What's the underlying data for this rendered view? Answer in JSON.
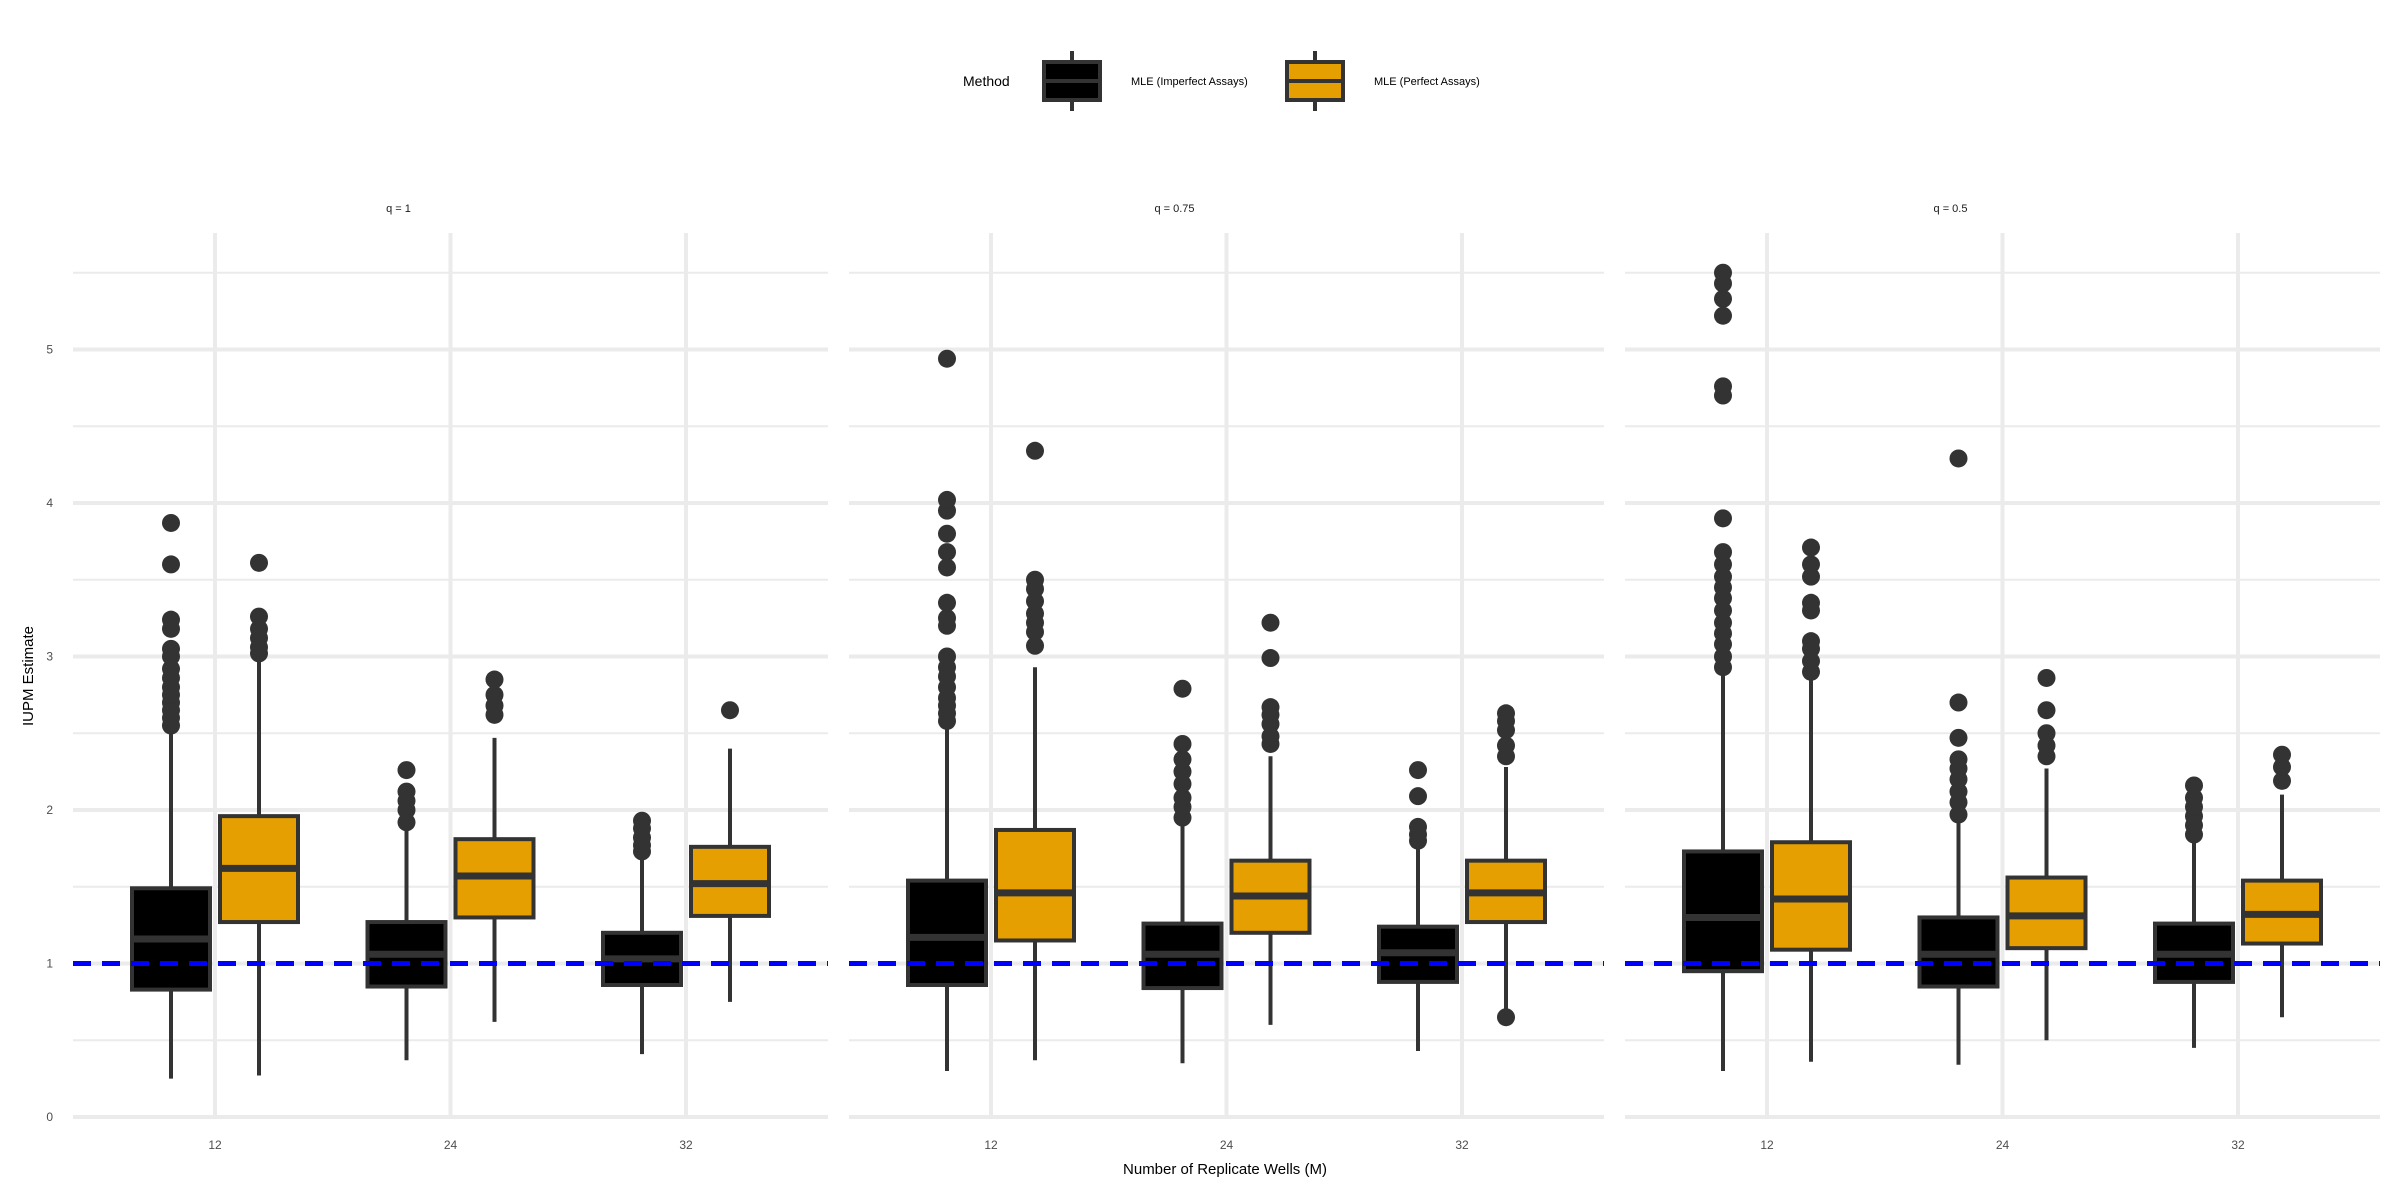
{
  "chart_data": {
    "type": "boxplot",
    "xlabel": "Number of Replicate Wells (M)",
    "ylabel": "IUPM Estimate",
    "ylim": [
      0,
      5.5
    ],
    "y_ticks": [
      0,
      1,
      2,
      3,
      4,
      5
    ],
    "categories": [
      "12",
      "24",
      "32"
    ],
    "reference_line": {
      "y": 1,
      "style": "dashed",
      "color": "#0000ff"
    },
    "grid": true,
    "legend": {
      "title": "Method",
      "position": "top",
      "entries": [
        {
          "label": "MLE (Imperfect Assays)",
          "color": "#000000"
        },
        {
          "label": "MLE (Perfect Assays)",
          "color": "#e69f00"
        }
      ]
    },
    "panels": [
      {
        "title": "q = 1",
        "series": [
          {
            "name": "MLE (Imperfect Assays)",
            "color": "#000000",
            "boxes": [
              {
                "category": "12",
                "whisker_low": 0.25,
                "q1": 0.83,
                "median": 1.16,
                "q3": 1.49,
                "whisker_high": 2.52,
                "outliers": [
                  2.55,
                  2.6,
                  2.65,
                  2.7,
                  2.75,
                  2.8,
                  2.86,
                  2.92,
                  3.0,
                  3.05,
                  3.18,
                  3.24,
                  3.6,
                  3.87
                ]
              },
              {
                "category": "24",
                "whisker_low": 0.37,
                "q1": 0.85,
                "median": 1.06,
                "q3": 1.27,
                "whisker_high": 1.9,
                "outliers": [
                  1.92,
                  2.0,
                  2.06,
                  2.12,
                  2.26
                ]
              },
              {
                "category": "32",
                "whisker_low": 0.41,
                "q1": 0.86,
                "median": 1.03,
                "q3": 1.2,
                "whisker_high": 1.7,
                "outliers": [
                  1.73,
                  1.77,
                  1.82,
                  1.88,
                  1.93
                ]
              }
            ]
          },
          {
            "name": "MLE (Perfect Assays)",
            "color": "#e69f00",
            "boxes": [
              {
                "category": "12",
                "whisker_low": 0.27,
                "q1": 1.27,
                "median": 1.62,
                "q3": 1.96,
                "whisker_high": 2.98,
                "outliers": [
                  3.02,
                  3.06,
                  3.12,
                  3.18,
                  3.26,
                  3.61
                ]
              },
              {
                "category": "24",
                "whisker_low": 0.62,
                "q1": 1.3,
                "median": 1.57,
                "q3": 1.81,
                "whisker_high": 2.47,
                "outliers": [
                  2.62,
                  2.68,
                  2.75,
                  2.85
                ]
              },
              {
                "category": "32",
                "whisker_low": 0.75,
                "q1": 1.31,
                "median": 1.52,
                "q3": 1.76,
                "whisker_high": 2.4,
                "outliers": [
                  2.65
                ]
              }
            ]
          }
        ]
      },
      {
        "title": "q = 0.75",
        "series": [
          {
            "name": "MLE (Imperfect Assays)",
            "color": "#000000",
            "boxes": [
              {
                "category": "12",
                "whisker_low": 0.3,
                "q1": 0.86,
                "median": 1.17,
                "q3": 1.54,
                "whisker_high": 2.56,
                "outliers": [
                  2.58,
                  2.63,
                  2.68,
                  2.73,
                  2.8,
                  2.87,
                  2.93,
                  3.0,
                  3.2,
                  3.25,
                  3.35,
                  3.58,
                  3.68,
                  3.8,
                  3.95,
                  4.02,
                  4.94
                ]
              },
              {
                "category": "24",
                "whisker_low": 0.35,
                "q1": 0.84,
                "median": 1.06,
                "q3": 1.26,
                "whisker_high": 1.92,
                "outliers": [
                  1.95,
                  2.02,
                  2.08,
                  2.17,
                  2.25,
                  2.33,
                  2.43,
                  2.79
                ]
              },
              {
                "category": "32",
                "whisker_low": 0.43,
                "q1": 0.88,
                "median": 1.07,
                "q3": 1.24,
                "whisker_high": 1.78,
                "outliers": [
                  1.8,
                  1.84,
                  1.89,
                  2.09,
                  2.26
                ]
              }
            ]
          },
          {
            "name": "MLE (Perfect Assays)",
            "color": "#e69f00",
            "boxes": [
              {
                "category": "12",
                "whisker_low": 0.37,
                "q1": 1.15,
                "median": 1.46,
                "q3": 1.87,
                "whisker_high": 2.93,
                "outliers": [
                  3.07,
                  3.16,
                  3.22,
                  3.28,
                  3.36,
                  3.44,
                  3.5,
                  4.34
                ]
              },
              {
                "category": "24",
                "whisker_low": 0.6,
                "q1": 1.2,
                "median": 1.44,
                "q3": 1.67,
                "whisker_high": 2.35,
                "outliers": [
                  2.43,
                  2.48,
                  2.56,
                  2.62,
                  2.67,
                  2.99,
                  3.22
                ]
              },
              {
                "category": "32",
                "whisker_low": 0.65,
                "q1": 1.27,
                "median": 1.46,
                "q3": 1.67,
                "whisker_high": 2.28,
                "outliers": [
                  2.35,
                  2.42,
                  2.52,
                  2.58,
                  2.63,
                  0.65
                ]
              }
            ]
          }
        ]
      },
      {
        "title": "q = 0.5",
        "series": [
          {
            "name": "MLE (Imperfect Assays)",
            "color": "#000000",
            "boxes": [
              {
                "category": "12",
                "whisker_low": 0.3,
                "q1": 0.95,
                "median": 1.3,
                "q3": 1.73,
                "whisker_high": 2.9,
                "outliers": [
                  2.93,
                  3.0,
                  3.08,
                  3.15,
                  3.22,
                  3.3,
                  3.38,
                  3.45,
                  3.52,
                  3.6,
                  3.68,
                  3.9,
                  4.7,
                  4.76,
                  5.22,
                  5.33,
                  5.43,
                  5.5
                ]
              },
              {
                "category": "24",
                "whisker_low": 0.34,
                "q1": 0.85,
                "median": 1.06,
                "q3": 1.3,
                "whisker_high": 1.95,
                "outliers": [
                  1.97,
                  2.05,
                  2.12,
                  2.2,
                  2.27,
                  2.33,
                  2.47,
                  2.7,
                  4.29
                ]
              },
              {
                "category": "32",
                "whisker_low": 0.45,
                "q1": 0.88,
                "median": 1.06,
                "q3": 1.26,
                "whisker_high": 1.8,
                "outliers": [
                  1.84,
                  1.9,
                  1.96,
                  2.02,
                  2.08,
                  2.16
                ]
              }
            ]
          },
          {
            "name": "MLE (Perfect Assays)",
            "color": "#e69f00",
            "boxes": [
              {
                "category": "12",
                "whisker_low": 0.36,
                "q1": 1.09,
                "median": 1.42,
                "q3": 1.79,
                "whisker_high": 2.85,
                "outliers": [
                  2.9,
                  2.97,
                  3.05,
                  3.1,
                  3.3,
                  3.35,
                  3.52,
                  3.6,
                  3.71
                ]
              },
              {
                "category": "24",
                "whisker_low": 0.5,
                "q1": 1.1,
                "median": 1.31,
                "q3": 1.56,
                "whisker_high": 2.27,
                "outliers": [
                  2.35,
                  2.42,
                  2.5,
                  2.65,
                  2.86
                ]
              },
              {
                "category": "32",
                "whisker_low": 0.65,
                "q1": 1.13,
                "median": 1.32,
                "q3": 1.54,
                "whisker_high": 2.1,
                "outliers": [
                  2.19,
                  2.28,
                  2.36
                ]
              }
            ]
          }
        ]
      }
    ]
  }
}
